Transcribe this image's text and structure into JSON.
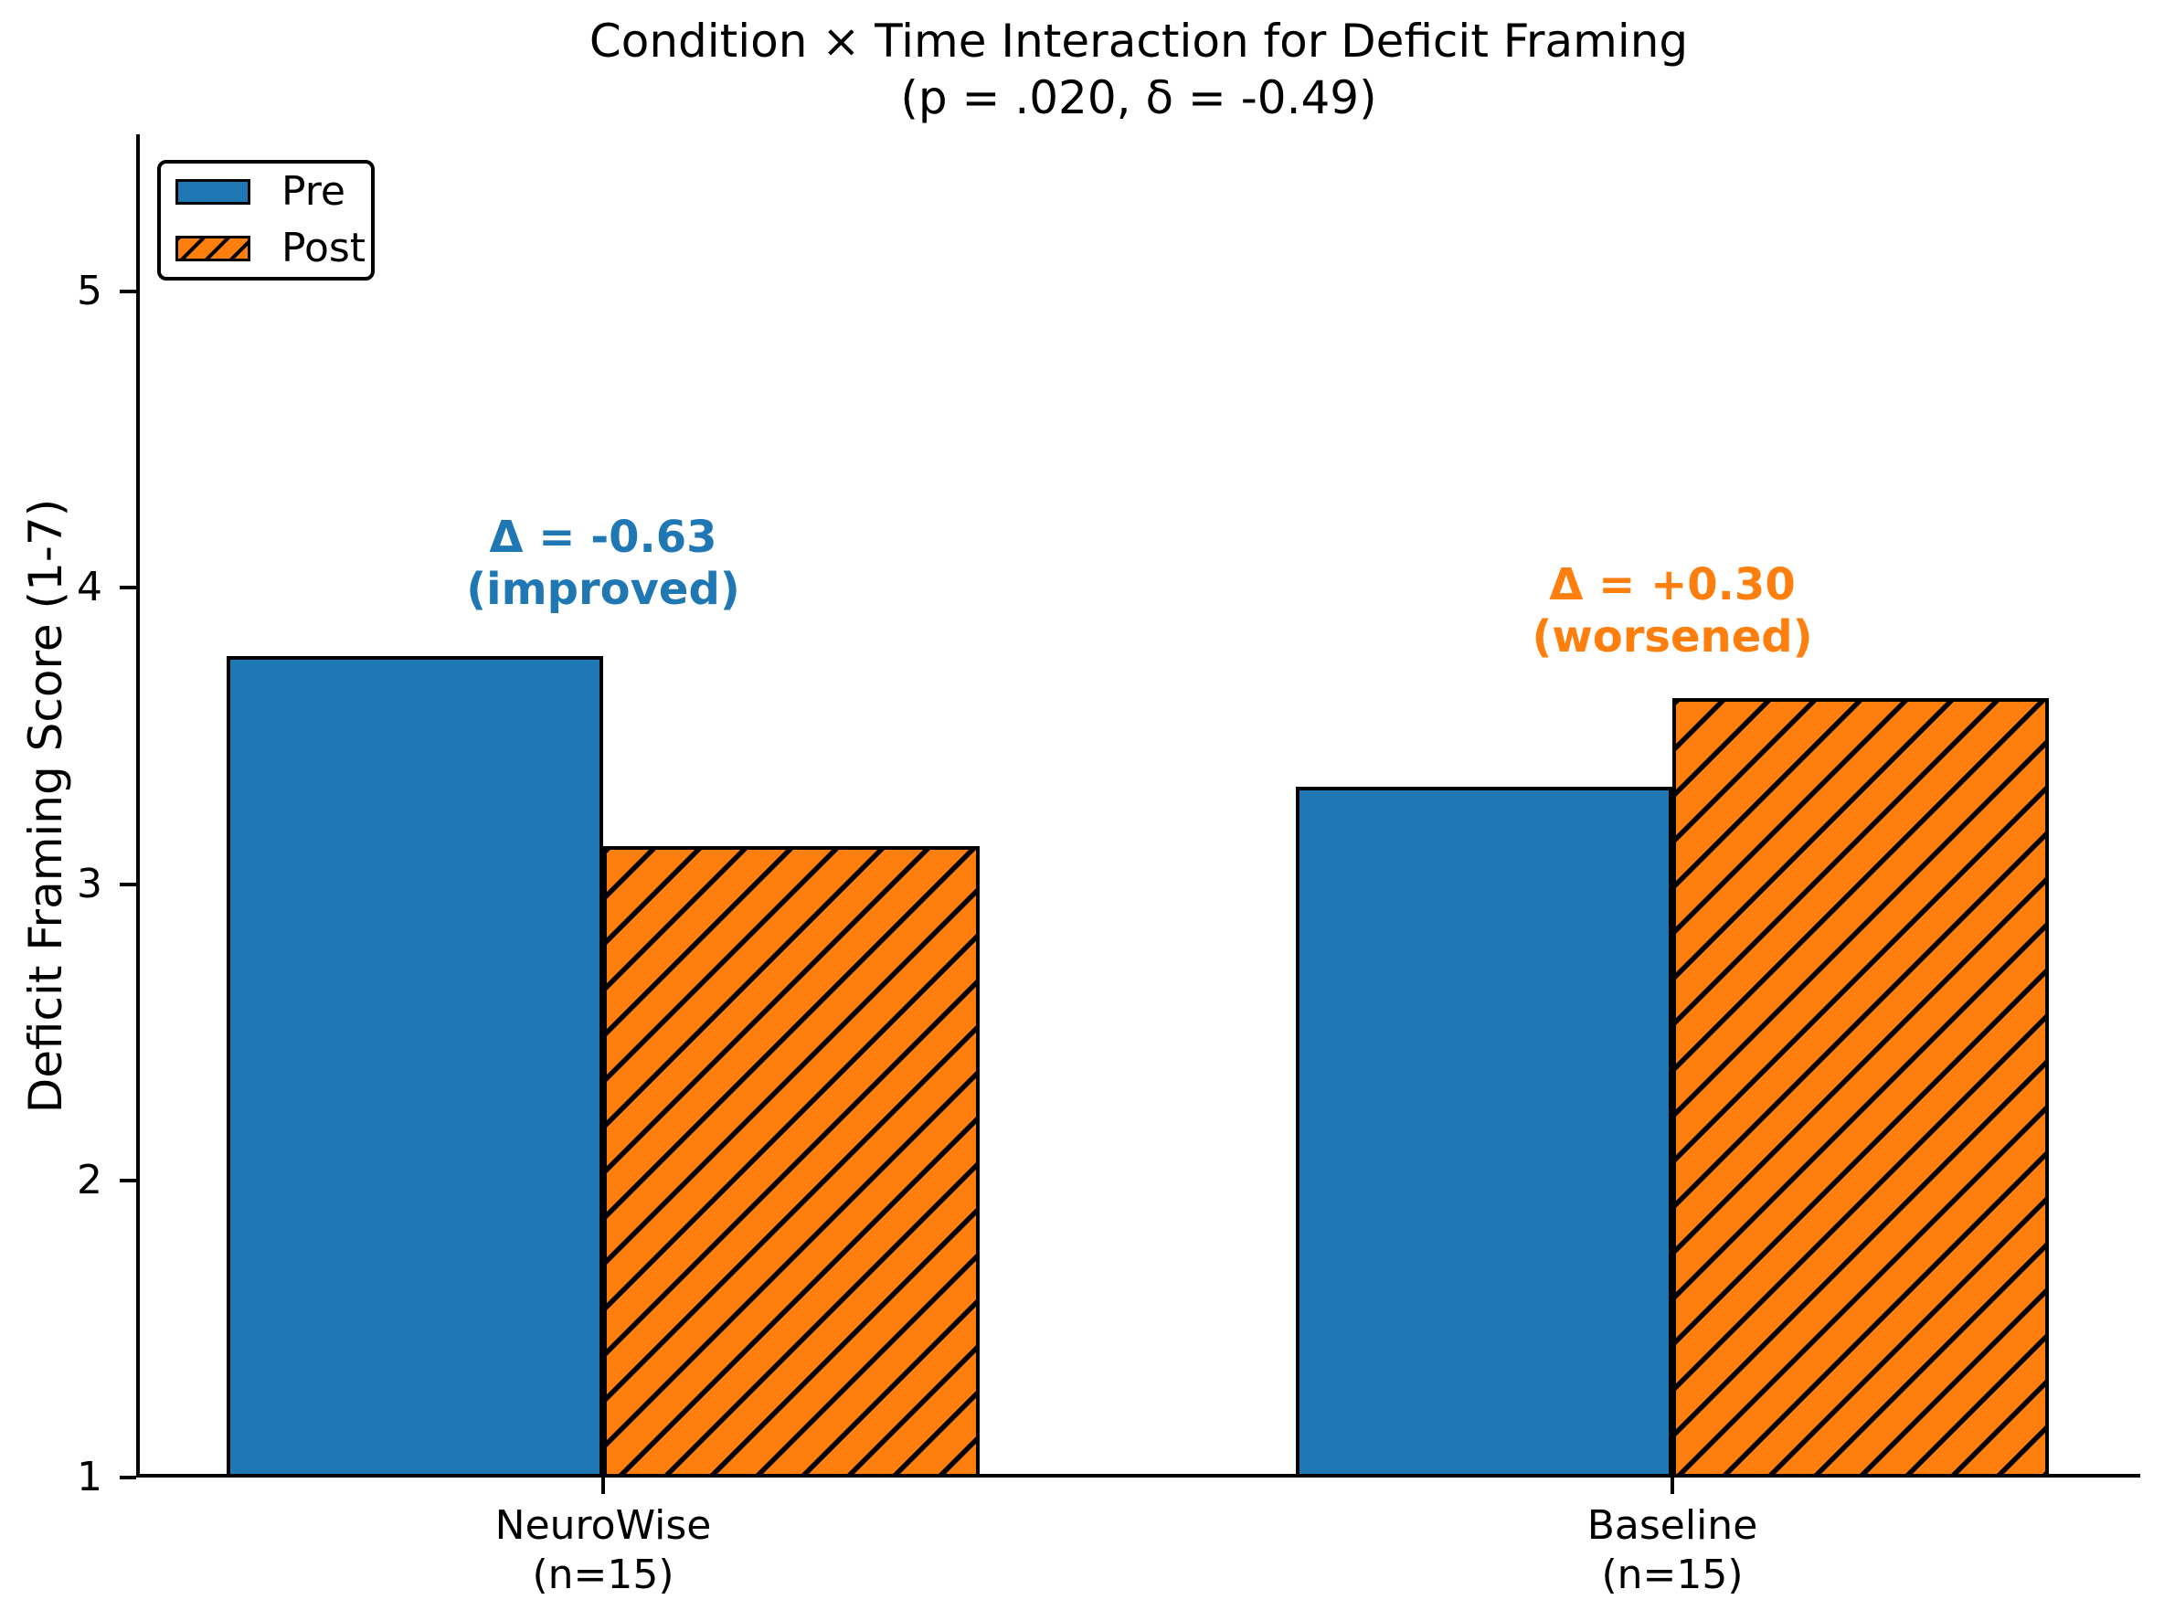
{
  "chart_data": {
    "type": "bar",
    "title": "Condition × Time Interaction for Deficit Framing",
    "subtitle": "(p = .020, δ = -0.49)",
    "ylabel": "Deficit Framing Score (1-7)",
    "categories": [
      {
        "line1": "NeuroWise",
        "line2": "(n=15)"
      },
      {
        "line1": "Baseline",
        "line2": "(n=15)"
      }
    ],
    "series": [
      {
        "name": "Pre",
        "color": "#1f77b4",
        "hatch": false,
        "values": [
          3.77,
          3.33
        ]
      },
      {
        "name": "Post",
        "color": "#ff7f0e",
        "hatch": true,
        "values": [
          3.13,
          3.63
        ]
      }
    ],
    "annotations": [
      {
        "group": "NeuroWise",
        "line1": "Δ = -0.63",
        "line2": "(improved)",
        "color": "#1f77b4"
      },
      {
        "group": "Baseline",
        "line1": "Δ = +0.30",
        "line2": "(worsened)",
        "color": "#ff7f0e"
      }
    ],
    "legend": {
      "position": "upper left",
      "labels": [
        "Pre",
        "Post"
      ]
    },
    "yticks": [
      1,
      2,
      3,
      4,
      5
    ],
    "ylim": [
      1,
      5.53
    ],
    "xlim": [
      -0.44,
      1.44
    ],
    "bar_width": 0.35,
    "grid": false,
    "background": "#ffffff",
    "axis_color": "#000000",
    "bar_edge_color": "#000000"
  }
}
